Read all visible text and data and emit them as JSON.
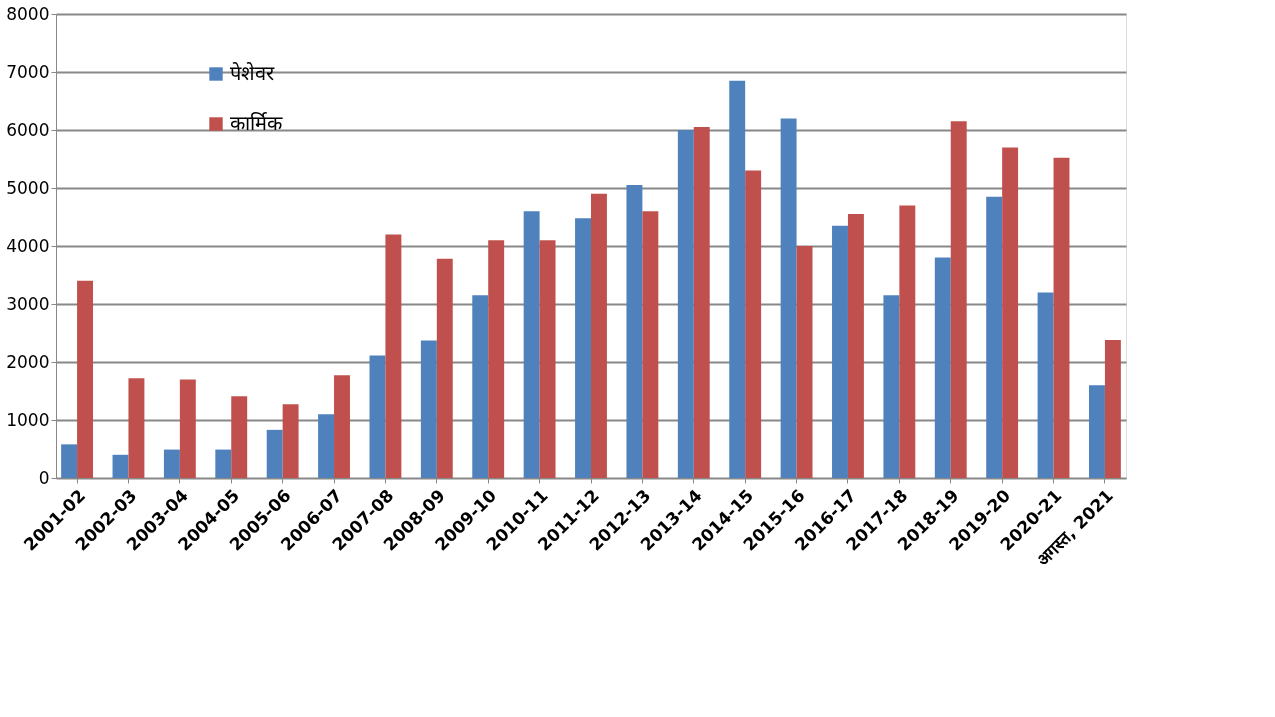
{
  "chart_data": {
    "type": "bar",
    "categories": [
      "2001-02",
      "2002-03",
      "2003-04",
      "2004-05",
      "2005-06",
      "2006-07",
      "2007-08",
      "2008-09",
      "2009-10",
      "2010-11",
      "2011-12",
      "2012-13",
      "2013-14",
      "2014-15",
      "2015-16",
      "2016-17",
      "2017-18",
      "2018-19",
      "2019-20",
      "2020-21",
      "अगस्त, 2021"
    ],
    "series": [
      {
        "name": "पेशेवर",
        "color": "#4f81bd",
        "values": [
          580,
          400,
          490,
          490,
          830,
          1100,
          2110,
          2370,
          3150,
          4600,
          4480,
          5050,
          6000,
          6850,
          6200,
          4350,
          3150,
          3800,
          4850,
          3200,
          1600
        ]
      },
      {
        "name": "कार्मिक",
        "color": "#c0504d",
        "values": [
          3400,
          1720,
          1700,
          1410,
          1270,
          1770,
          4200,
          3780,
          4100,
          4100,
          4900,
          4600,
          6050,
          5300,
          4000,
          4550,
          4700,
          6150,
          5700,
          5520,
          2380
        ]
      }
    ],
    "ylim": [
      0,
      8000
    ],
    "yticks": [
      0,
      1000,
      2000,
      3000,
      4000,
      5000,
      6000,
      7000,
      8000
    ],
    "grid": "y",
    "legend": "top left"
  }
}
